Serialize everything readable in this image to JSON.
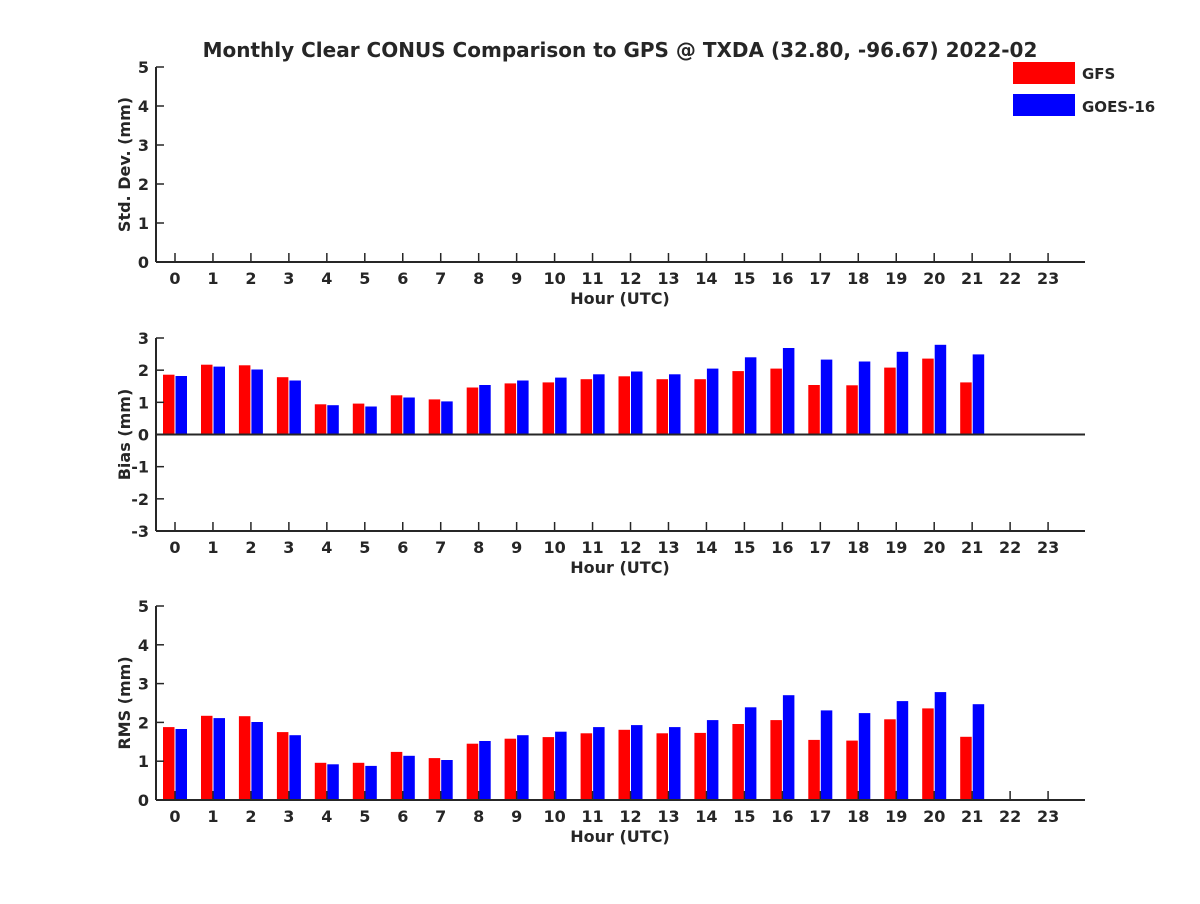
{
  "title": "Monthly Clear CONUS Comparison to GPS @ TXDA (32.80, -96.67) 2022-02",
  "legend": {
    "position": "top-right",
    "entries": [
      {
        "label": "GFS",
        "color": "#ff0000"
      },
      {
        "label": "GOES-16",
        "color": "#0000ff"
      }
    ]
  },
  "chart_data": [
    {
      "type": "bar",
      "id": "stddev",
      "xlabel": "Hour (UTC)",
      "ylabel": "Std. Dev. (mm)",
      "ylim": [
        0,
        5
      ],
      "yticks": [
        0,
        1,
        2,
        3,
        4,
        5
      ],
      "grid": false,
      "categories": [
        "0",
        "1",
        "2",
        "3",
        "4",
        "5",
        "6",
        "7",
        "8",
        "9",
        "10",
        "11",
        "12",
        "13",
        "14",
        "15",
        "16",
        "17",
        "18",
        "19",
        "20",
        "21",
        "22",
        "23"
      ],
      "series": [
        {
          "name": "GFS",
          "color": "#ff0000",
          "values": [
            null,
            null,
            null,
            null,
            null,
            null,
            null,
            null,
            null,
            null,
            null,
            null,
            null,
            null,
            null,
            null,
            null,
            null,
            null,
            null,
            null,
            null,
            null,
            null
          ]
        },
        {
          "name": "GOES-16",
          "color": "#0000ff",
          "values": [
            null,
            null,
            null,
            null,
            null,
            null,
            null,
            null,
            null,
            null,
            null,
            null,
            null,
            null,
            null,
            null,
            null,
            null,
            null,
            null,
            null,
            null,
            null,
            null
          ]
        }
      ]
    },
    {
      "type": "bar",
      "id": "bias",
      "xlabel": "Hour (UTC)",
      "ylabel": "Bias (mm)",
      "ylim": [
        -3,
        3
      ],
      "yticks": [
        -3,
        -2,
        -1,
        0,
        1,
        2,
        3
      ],
      "grid": false,
      "categories": [
        "0",
        "1",
        "2",
        "3",
        "4",
        "5",
        "6",
        "7",
        "8",
        "9",
        "10",
        "11",
        "12",
        "13",
        "14",
        "15",
        "16",
        "17",
        "18",
        "19",
        "20",
        "21",
        "22",
        "23"
      ],
      "series": [
        {
          "name": "GFS",
          "color": "#ff0000",
          "values": [
            1.86,
            2.17,
            2.15,
            1.78,
            0.94,
            0.96,
            1.22,
            1.09,
            1.46,
            1.59,
            1.62,
            1.72,
            1.81,
            1.72,
            1.72,
            1.97,
            2.05,
            1.54,
            1.53,
            2.08,
            2.36,
            1.62,
            null,
            null
          ]
        },
        {
          "name": "GOES-16",
          "color": "#0000ff",
          "values": [
            1.82,
            2.11,
            2.02,
            1.68,
            0.91,
            0.87,
            1.15,
            1.03,
            1.54,
            1.68,
            1.77,
            1.87,
            1.96,
            1.87,
            2.05,
            2.4,
            2.69,
            2.33,
            2.27,
            2.57,
            2.79,
            2.49,
            null,
            null
          ]
        }
      ]
    },
    {
      "type": "bar",
      "id": "rms",
      "xlabel": "Hour (UTC)",
      "ylabel": "RMS (mm)",
      "ylim": [
        0,
        5
      ],
      "yticks": [
        0,
        1,
        2,
        3,
        4,
        5
      ],
      "grid": false,
      "categories": [
        "0",
        "1",
        "2",
        "3",
        "4",
        "5",
        "6",
        "7",
        "8",
        "9",
        "10",
        "11",
        "12",
        "13",
        "14",
        "15",
        "16",
        "17",
        "18",
        "19",
        "20",
        "21",
        "22",
        "23"
      ],
      "series": [
        {
          "name": "GFS",
          "color": "#ff0000",
          "values": [
            1.88,
            2.17,
            2.16,
            1.75,
            0.96,
            0.96,
            1.24,
            1.08,
            1.45,
            1.58,
            1.62,
            1.72,
            1.81,
            1.72,
            1.73,
            1.96,
            2.06,
            1.55,
            1.53,
            2.08,
            2.36,
            1.63,
            null,
            null
          ]
        },
        {
          "name": "GOES-16",
          "color": "#0000ff",
          "values": [
            1.83,
            2.11,
            2.01,
            1.67,
            0.92,
            0.88,
            1.14,
            1.03,
            1.52,
            1.67,
            1.76,
            1.88,
            1.93,
            1.88,
            2.06,
            2.39,
            2.7,
            2.31,
            2.24,
            2.55,
            2.78,
            2.47,
            null,
            null
          ]
        }
      ]
    }
  ]
}
